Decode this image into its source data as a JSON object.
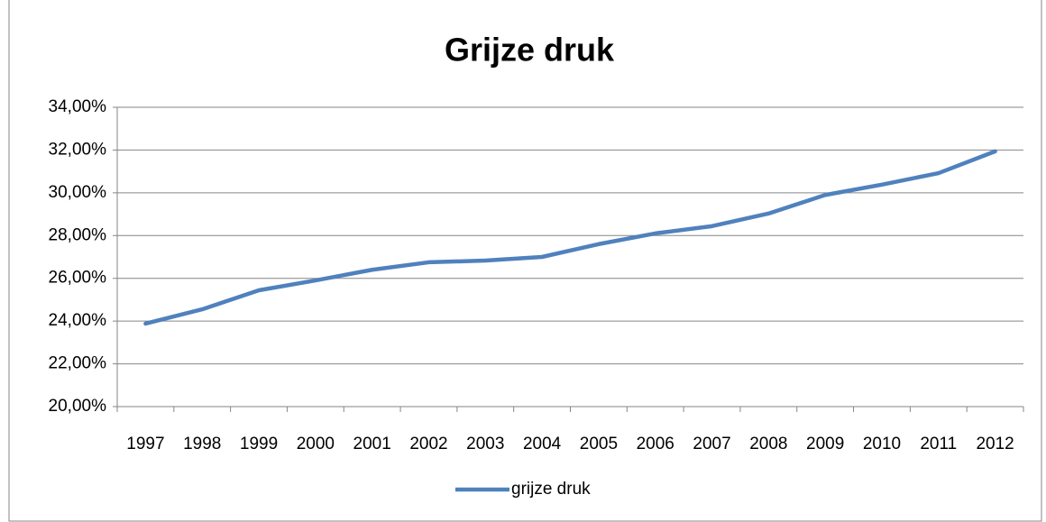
{
  "chart_data": {
    "type": "line",
    "title": "Grijze druk",
    "categories": [
      "1997",
      "1998",
      "1999",
      "2000",
      "2001",
      "2002",
      "2003",
      "2004",
      "2005",
      "2006",
      "2007",
      "2008",
      "2009",
      "2010",
      "2011",
      "2012"
    ],
    "series": [
      {
        "name": "grijze druk",
        "color": "#4f81bd",
        "values": [
          23.88,
          24.55,
          25.44,
          25.9,
          26.4,
          26.75,
          26.83,
          27.0,
          27.6,
          28.1,
          28.44,
          29.03,
          29.9,
          30.38,
          30.92,
          31.94
        ]
      }
    ],
    "ylim": [
      20,
      34
    ],
    "yticks": [
      {
        "value": 20,
        "label": "20,00%"
      },
      {
        "value": 22,
        "label": "22,00%"
      },
      {
        "value": 24,
        "label": "24,00%"
      },
      {
        "value": 26,
        "label": "26,00%"
      },
      {
        "value": 28,
        "label": "28,00%"
      },
      {
        "value": 30,
        "label": "30,00%"
      },
      {
        "value": 32,
        "label": "32,00%"
      },
      {
        "value": 34,
        "label": "34,00%"
      }
    ],
    "grid": true,
    "legend": "bottom"
  }
}
